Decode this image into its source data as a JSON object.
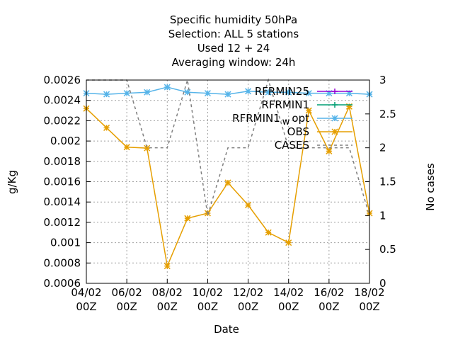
{
  "chart_data": {
    "type": "line",
    "title_lines": [
      "Specific humidity 50hPa",
      "Selection: ALL      5 stations",
      "Used  12 + 24",
      "Averaging window: 24h"
    ],
    "xlabel": "Date",
    "ylabel": "g/Kg",
    "y2label": "No cases",
    "xlim": [
      0,
      14
    ],
    "ylim": [
      0.0006,
      0.0026
    ],
    "y2lim": [
      0,
      3
    ],
    "x_ticks": [
      {
        "x": 0,
        "label": [
          "04/02",
          "00Z"
        ]
      },
      {
        "x": 2,
        "label": [
          "06/02",
          "00Z"
        ]
      },
      {
        "x": 4,
        "label": [
          "08/02",
          "00Z"
        ]
      },
      {
        "x": 6,
        "label": [
          "10/02",
          "00Z"
        ]
      },
      {
        "x": 8,
        "label": [
          "12/02",
          "00Z"
        ]
      },
      {
        "x": 10,
        "label": [
          "14/02",
          "00Z"
        ]
      },
      {
        "x": 12,
        "label": [
          "16/02",
          "00Z"
        ]
      },
      {
        "x": 14,
        "label": [
          "18/02",
          "00Z"
        ]
      }
    ],
    "y_ticks": [
      "0.0006",
      "0.0008",
      "0.001",
      "0.0012",
      "0.0014",
      "0.0016",
      "0.0018",
      "0.002",
      "0.0022",
      "0.0024",
      "0.0026"
    ],
    "y2_ticks": [
      "0",
      "0.5",
      "1",
      "1.5",
      "2",
      "2.5",
      "3"
    ],
    "grid": true,
    "legend_position": "top-right",
    "series": [
      {
        "name": "RFRMIN25",
        "color": "#9400d3",
        "axis": "y",
        "marker": "plus",
        "x": [],
        "values": []
      },
      {
        "name": "RFRMIN1",
        "color": "#009e73",
        "axis": "y",
        "marker": "plus",
        "x": [],
        "values": []
      },
      {
        "name": "RFRMIN1_w_opt",
        "color": "#56b4e9",
        "axis": "y",
        "marker": "star",
        "x": [
          0,
          1,
          2,
          3,
          4,
          5,
          6,
          7,
          8,
          9,
          10,
          11,
          12,
          13,
          14
        ],
        "values": [
          0.00247,
          0.00246,
          0.00247,
          0.00248,
          0.00253,
          0.00248,
          0.00247,
          0.00246,
          0.00249,
          0.00248,
          0.00248,
          0.00247,
          0.00247,
          0.00247,
          0.00246
        ]
      },
      {
        "name": "OBS",
        "color": "#e69f00",
        "axis": "y",
        "marker": "star",
        "x": [
          0,
          1,
          2,
          3,
          4,
          5,
          6,
          7,
          8,
          9,
          10,
          11,
          12,
          13,
          14
        ],
        "values": [
          0.00232,
          0.00213,
          0.00194,
          0.00193,
          0.00077,
          0.00124,
          0.00129,
          0.00159,
          0.00137,
          0.0011,
          0.001,
          0.0023,
          0.0019,
          0.00234,
          0.00129
        ]
      },
      {
        "name": "CASES",
        "color": "#808080",
        "axis": "y2",
        "marker": "none",
        "dash": true,
        "x": [
          0,
          2,
          3,
          4,
          5,
          6,
          7,
          8,
          9,
          10,
          11,
          12,
          13,
          14
        ],
        "values": [
          3,
          3,
          2,
          2,
          3,
          1,
          2,
          2,
          3,
          2,
          2,
          2,
          2,
          1
        ]
      }
    ],
    "legend": [
      {
        "label": "RFRMIN25",
        "series": 0
      },
      {
        "label": "RFRMIN1",
        "series": 1
      },
      {
        "label": "RFRMIN1_w_opt",
        "label_parts": [
          "RFRMIN1",
          "w",
          "opt"
        ],
        "series": 2
      },
      {
        "label": "OBS",
        "series": 3
      },
      {
        "label": "CASES",
        "series": 4
      }
    ]
  }
}
